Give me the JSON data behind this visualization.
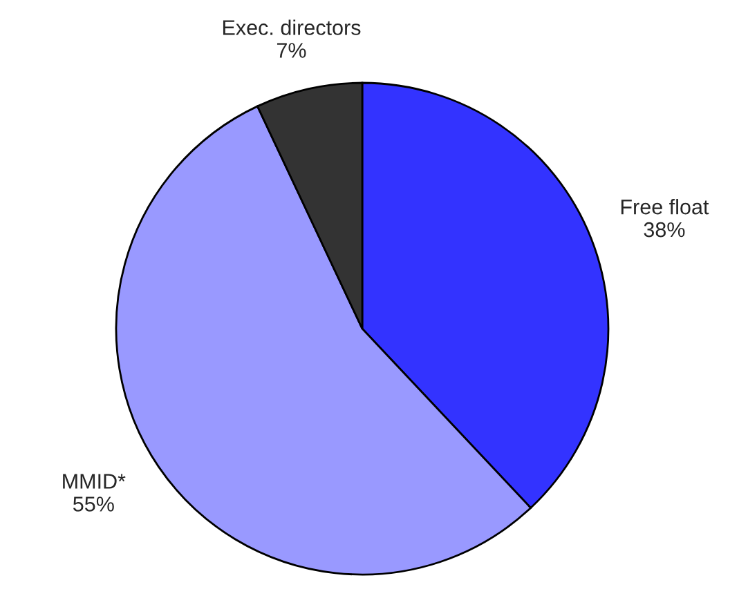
{
  "chart_data": {
    "type": "pie",
    "categories": [
      "Free float",
      "MMID*",
      "Exec. directors"
    ],
    "values": [
      38,
      55,
      7
    ],
    "value_labels": [
      "38%",
      "55%",
      "7%"
    ],
    "colors": [
      "#3333ff",
      "#9999ff",
      "#333333"
    ]
  }
}
